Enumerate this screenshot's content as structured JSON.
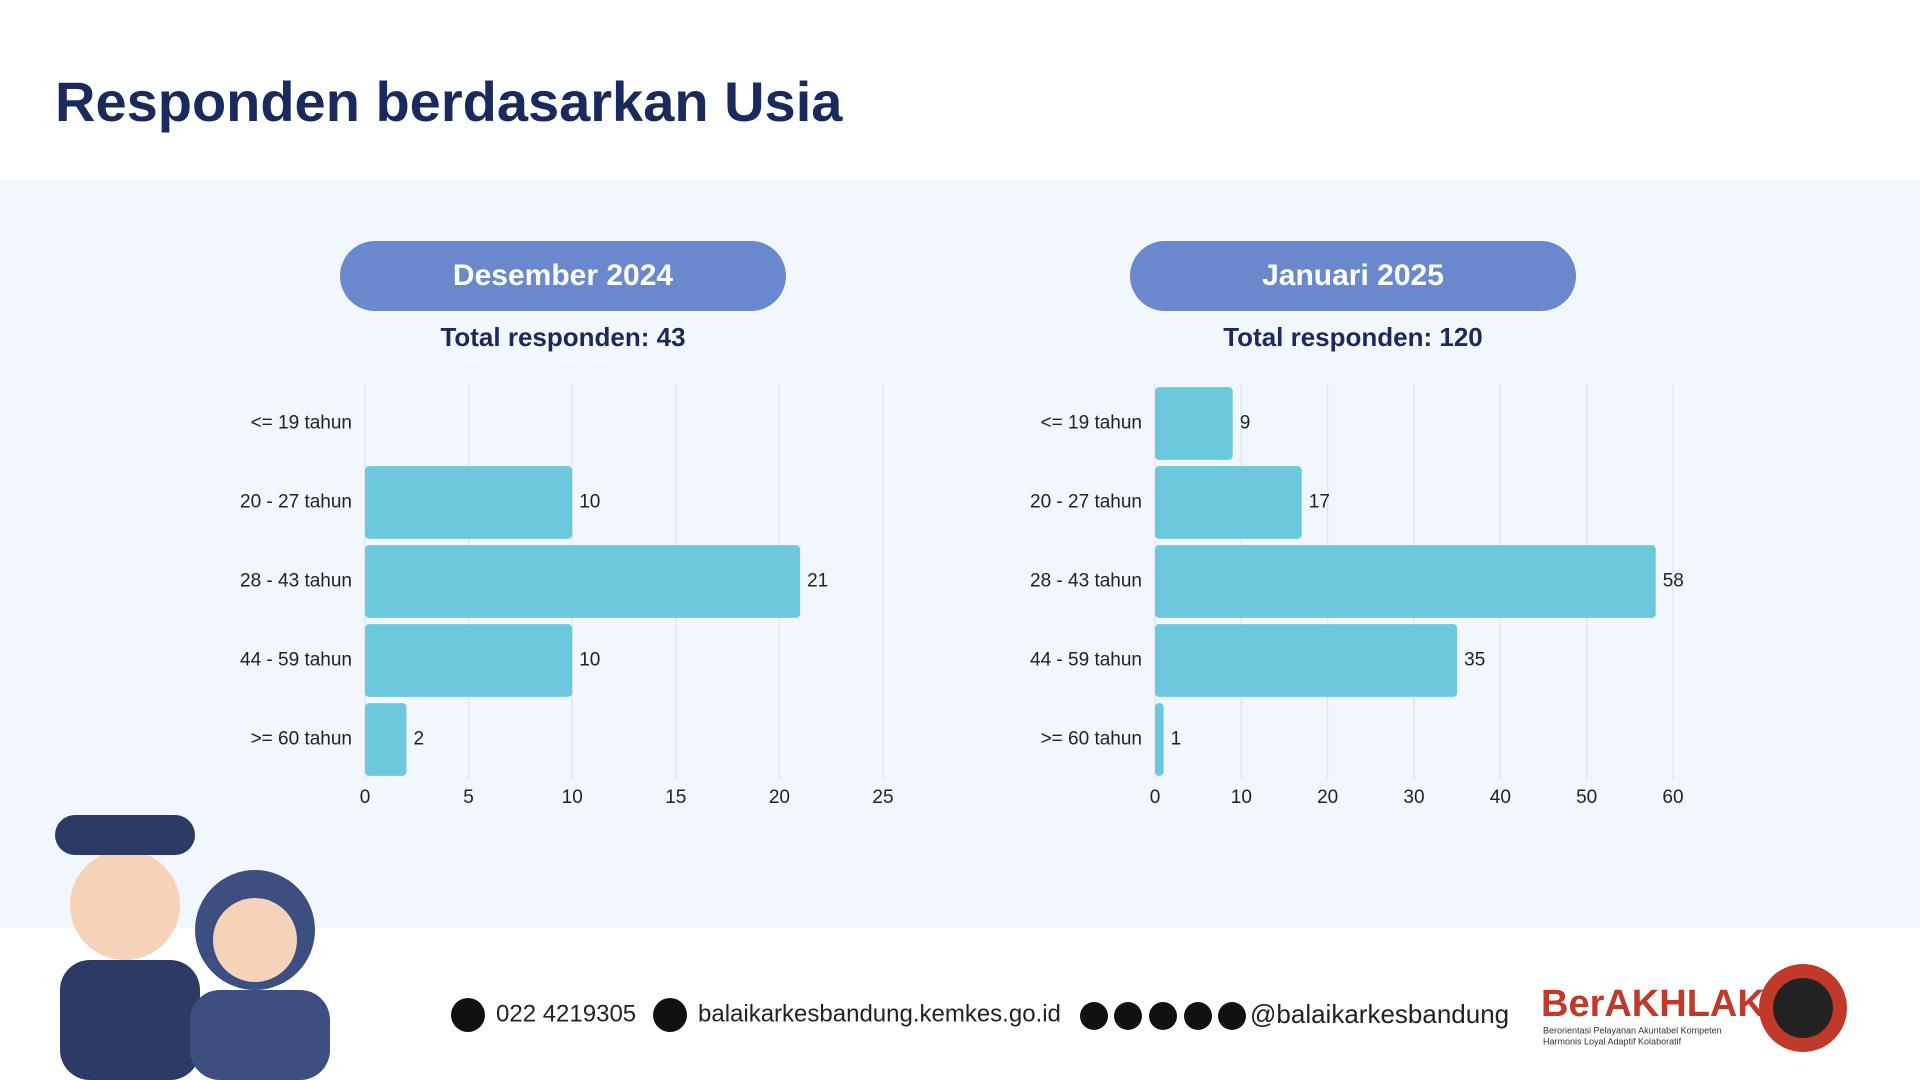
{
  "title": "Responden berdasarkan Usia",
  "chart_data": [
    {
      "type": "bar",
      "header": "Desember 2024",
      "subtitle": "Total responden: 43",
      "categories": [
        "<= 19 tahun",
        "20 - 27 tahun",
        "28 - 43 tahun",
        "44 - 59 tahun",
        ">= 60 tahun"
      ],
      "values": [
        0,
        10,
        21,
        10,
        2
      ],
      "value_labels": [
        null,
        "10",
        "21",
        "10",
        "2"
      ],
      "color": "#6cc8dc",
      "xlim": [
        0,
        25
      ],
      "xticks": [
        0,
        5,
        10,
        15,
        20,
        25
      ],
      "grid": true
    },
    {
      "type": "bar",
      "header": "Januari 2025",
      "subtitle": "Total responden: 120",
      "categories": [
        "<= 19 tahun",
        "20 - 27 tahun",
        "28 - 43 tahun",
        "44 - 59 tahun",
        ">= 60 tahun"
      ],
      "values": [
        9,
        17,
        58,
        35,
        1
      ],
      "color": "#6cc8dc",
      "xlim": [
        0,
        60
      ],
      "xticks": [
        0,
        10,
        20,
        30,
        40,
        50,
        60
      ],
      "grid": true
    }
  ],
  "footer": {
    "phone": "022 4219305",
    "website": "balaikarkesbandung.kemkes.go.id",
    "social": "@balaikarkesbandung",
    "brand": "BerAKHLAK",
    "tagline": [
      "Berorientasi Pelayanan Akuntabel Kompeten",
      "Harmonis Loyal Adaptif Kolaboratif"
    ]
  }
}
